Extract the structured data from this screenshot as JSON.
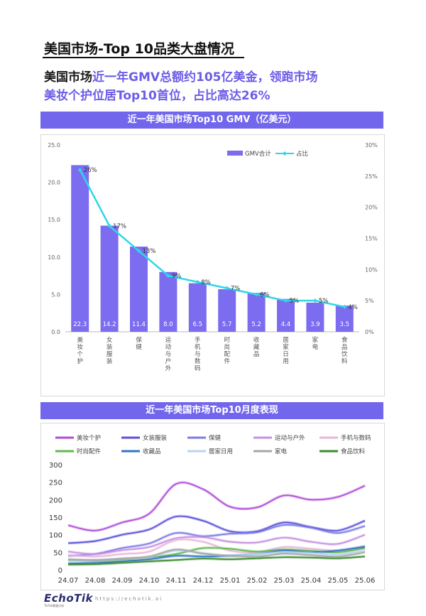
{
  "page_title": "美国市场-Top 10品类大盘情况",
  "headline": {
    "line1_dark": "美国市场",
    "line1_accent": "近一年GMV总额约105亿美金，领跑市场",
    "line2_accent": "美妆个护位居Top10首位，占比高达26%"
  },
  "chart1_banner": "近一年美国市场Top10 GMV（亿美元）",
  "chart2_banner": "近一年美国市场Top10月度表现",
  "footer": {
    "logo": "EchoTik",
    "logo_sub": "TikTok数据分析",
    "url": "https://echotik.ai"
  },
  "colors": {
    "accent": "#7266ec",
    "bar": "#7b6cf0",
    "share_line": "#2fd6ea"
  },
  "chart_data": [
    {
      "type": "bar",
      "title": "近一年美国市场Top10 GMV（亿美元）",
      "categories": [
        "美妆个护",
        "女装服装",
        "保健",
        "运动与户外",
        "手机与数码",
        "时尚配件",
        "收藏品",
        "居家日用",
        "家电",
        "食品饮料"
      ],
      "series": [
        {
          "name": "GMV合计",
          "type": "bar",
          "axis": "left",
          "values": [
            22.3,
            14.2,
            11.4,
            8.0,
            6.5,
            5.7,
            5.2,
            4.4,
            3.9,
            3.5
          ],
          "labels": [
            "22.3",
            "14.2",
            "11.4",
            "8.0",
            "6.5",
            "5.7",
            "5.2",
            "4.4",
            "3.9",
            "3.5"
          ]
        },
        {
          "name": "占比",
          "type": "line",
          "axis": "right",
          "values": [
            26,
            17,
            13,
            9,
            8,
            7,
            6,
            5,
            5,
            4
          ],
          "labels": [
            "26%",
            "17%",
            "13%",
            "9%",
            "8%",
            "7%",
            "6%",
            "5%",
            "5%",
            "4%"
          ]
        }
      ],
      "y_left": {
        "min": 0,
        "max": 25,
        "ticks": [
          "0.0",
          "5.0",
          "10.0",
          "15.0",
          "20.0",
          "25.0"
        ]
      },
      "y_right": {
        "min": 0,
        "max": 30,
        "ticks": [
          "0%",
          "5%",
          "10%",
          "15%",
          "20%",
          "25%",
          "30%"
        ]
      },
      "legend_position": "top-right"
    },
    {
      "type": "line",
      "title": "近一年美国市场Top10月度表现",
      "x": [
        "24.07",
        "24.08",
        "24.09",
        "24.10",
        "24.11",
        "24.12",
        "25.01",
        "25.02",
        "25.03",
        "25.04",
        "25.05",
        "25.06"
      ],
      "ylim": [
        0,
        300
      ],
      "y_ticks": [
        "0",
        "50",
        "100",
        "150",
        "200",
        "250",
        "300"
      ],
      "legend_position": "top",
      "series": [
        {
          "name": "美妆个护",
          "color": "#b04ad8",
          "values": [
            127,
            112,
            135,
            160,
            245,
            230,
            180,
            178,
            212,
            200,
            208,
            240
          ]
        },
        {
          "name": "女装服装",
          "color": "#5a4fd8",
          "values": [
            76,
            82,
            100,
            115,
            152,
            140,
            110,
            110,
            135,
            122,
            112,
            140
          ]
        },
        {
          "name": "保健",
          "color": "#7c7ae6",
          "values": [
            40,
            45,
            62,
            75,
            105,
            96,
            103,
            107,
            128,
            120,
            105,
            125
          ]
        },
        {
          "name": "运动与户外",
          "color": "#c78fe0",
          "values": [
            52,
            45,
            56,
            65,
            90,
            93,
            80,
            78,
            92,
            80,
            74,
            100
          ]
        },
        {
          "name": "手机与数码",
          "color": "#e8b5d8",
          "values": [
            42,
            38,
            45,
            52,
            85,
            80,
            55,
            50,
            65,
            60,
            55,
            68
          ]
        },
        {
          "name": "时尚配件",
          "color": "#5fb84a",
          "values": [
            28,
            26,
            30,
            35,
            45,
            62,
            60,
            52,
            58,
            54,
            50,
            62
          ]
        },
        {
          "name": "收藏品",
          "color": "#2e74c8",
          "values": [
            18,
            20,
            24,
            30,
            40,
            38,
            40,
            45,
            55,
            50,
            55,
            66
          ]
        },
        {
          "name": "居家日用",
          "color": "#b7d6f0",
          "values": [
            25,
            27,
            32,
            36,
            55,
            48,
            40,
            45,
            50,
            48,
            44,
            55
          ]
        },
        {
          "name": "家电",
          "color": "#a6a6a6",
          "values": [
            30,
            28,
            32,
            38,
            58,
            46,
            40,
            38,
            46,
            42,
            38,
            50
          ]
        },
        {
          "name": "食品饮料",
          "color": "#3a8a2e",
          "values": [
            15,
            16,
            20,
            24,
            28,
            32,
            30,
            33,
            36,
            35,
            33,
            38
          ]
        }
      ]
    }
  ]
}
